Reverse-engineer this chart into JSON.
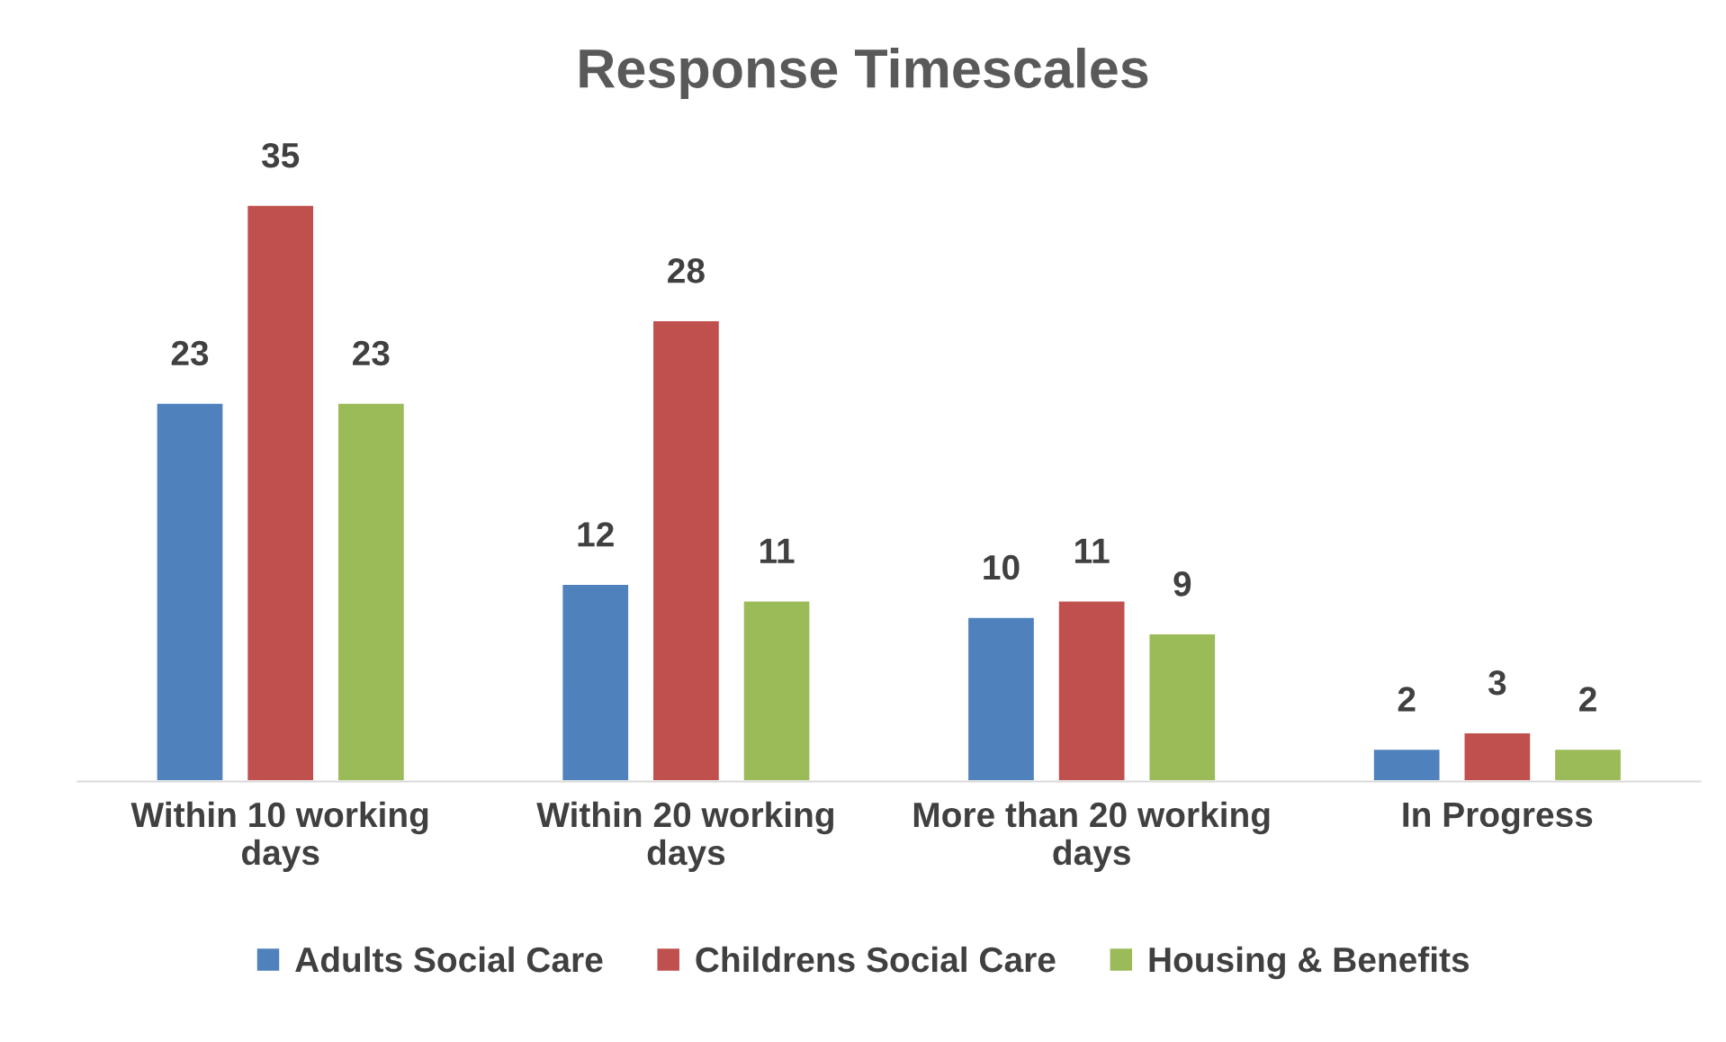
{
  "chart_data": {
    "type": "bar",
    "title": "Response Timescales",
    "categories": [
      "Within 10 working days",
      "Within 20 working days",
      "More than 20 working days",
      "In Progress"
    ],
    "series": [
      {
        "name": "Adults Social Care",
        "color": "#4f81bd",
        "values": [
          23,
          12,
          10,
          2
        ]
      },
      {
        "name": "Childrens Social Care",
        "color": "#c0504d",
        "values": [
          35,
          28,
          11,
          3
        ]
      },
      {
        "name": "Housing & Benefits",
        "color": "#9bbb59",
        "values": [
          23,
          11,
          9,
          2
        ]
      }
    ],
    "data_labels": true,
    "grid": false,
    "legend": "bottom"
  }
}
